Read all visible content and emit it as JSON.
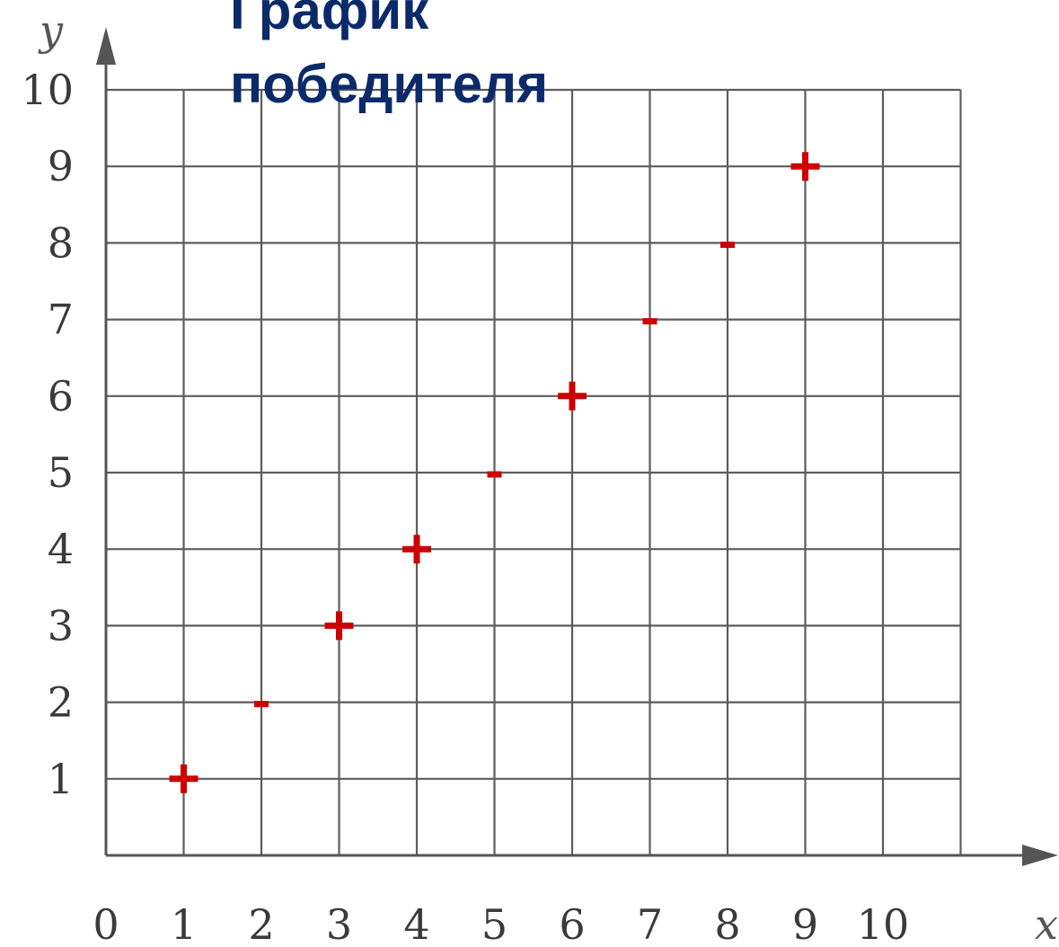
{
  "chart_data": {
    "type": "scatter",
    "title_lines": [
      "График",
      "победителя"
    ],
    "xlabel": "x",
    "ylabel": "y",
    "x_ticks": [
      "0",
      "1",
      "2",
      "3",
      "4",
      "5",
      "6",
      "7",
      "8",
      "9",
      "10"
    ],
    "y_ticks": [
      "1",
      "2",
      "3",
      "4",
      "5",
      "6",
      "7",
      "8",
      "9",
      "10"
    ],
    "xlim": [
      0,
      11
    ],
    "ylim": [
      0,
      10
    ],
    "grid": true,
    "mark_color": "#cc0000",
    "points": [
      {
        "x": 1,
        "y": 1,
        "label": "+"
      },
      {
        "x": 2,
        "y": 2,
        "label": "-"
      },
      {
        "x": 3,
        "y": 3,
        "label": "+"
      },
      {
        "x": 4,
        "y": 4,
        "label": "+"
      },
      {
        "x": 5,
        "y": 5,
        "label": "-"
      },
      {
        "x": 6,
        "y": 6,
        "label": "+"
      },
      {
        "x": 7,
        "y": 7,
        "label": "-"
      },
      {
        "x": 8,
        "y": 8,
        "label": "-"
      },
      {
        "x": 9,
        "y": 9,
        "label": "+"
      }
    ]
  }
}
